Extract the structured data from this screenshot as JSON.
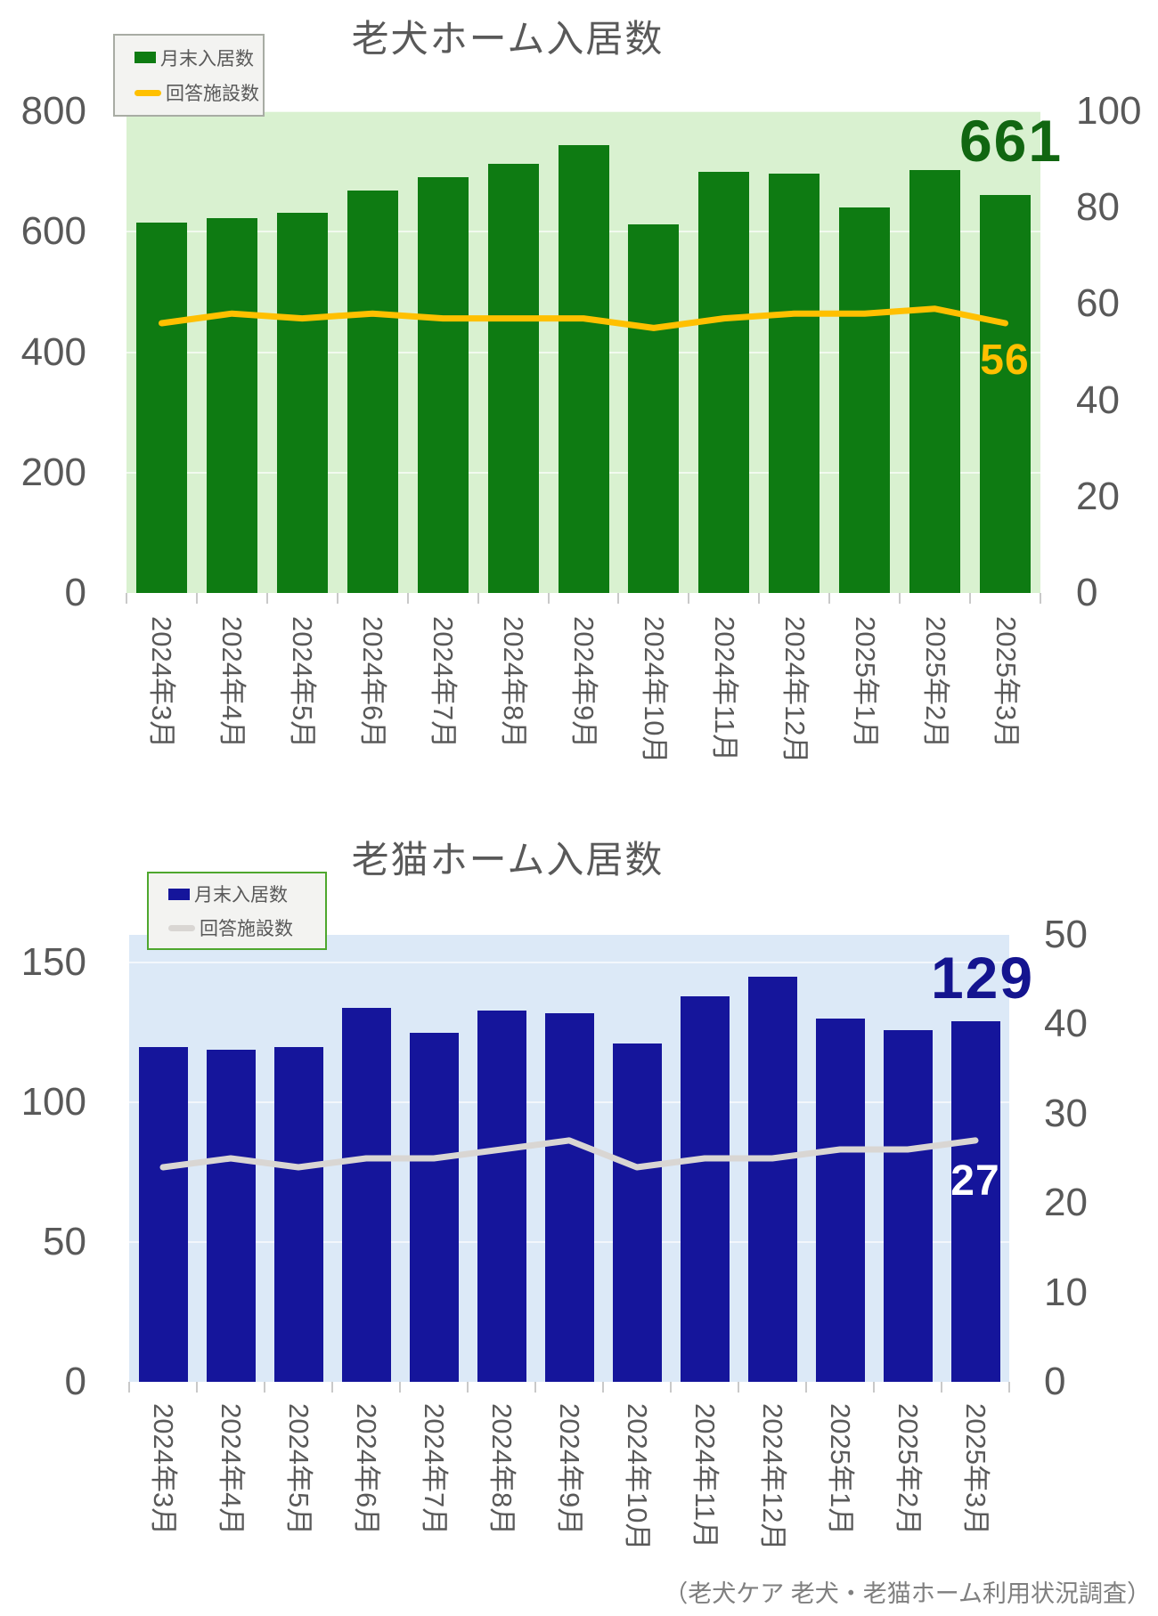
{
  "footer": "（老犬ケア 老犬・老猫ホーム利用状況調査）",
  "chart_data": [
    {
      "type": "bar",
      "title": "老犬ホーム入居数",
      "legend": [
        {
          "label": "月末入居数",
          "series_type": "bar"
        },
        {
          "label": "回答施設数",
          "series_type": "line"
        }
      ],
      "categories": [
        "2024年3月",
        "2024年4月",
        "2024年5月",
        "2024年6月",
        "2024年7月",
        "2024年8月",
        "2024年9月",
        "2024年10月",
        "2024年11月",
        "2024年12月",
        "2025年1月",
        "2025年2月",
        "2025年3月"
      ],
      "series": [
        {
          "name": "月末入居数",
          "type": "bar",
          "axis": "left",
          "values": [
            615,
            622,
            632,
            668,
            690,
            713,
            744,
            612,
            699,
            696,
            641,
            703,
            661
          ]
        },
        {
          "name": "回答施設数",
          "type": "line",
          "axis": "right",
          "values": [
            56,
            58,
            57,
            58,
            57,
            57,
            57,
            55,
            57,
            58,
            58,
            59,
            56
          ]
        }
      ],
      "left_axis_ticks": [
        0,
        200,
        400,
        600,
        800
      ],
      "left_axis_max": 800,
      "right_axis_ticks": [
        0,
        20,
        40,
        60,
        80,
        100
      ],
      "right_axis_max": 100,
      "grid": "horizontal",
      "legend_position": "top-left",
      "end_labels": {
        "bar": "661",
        "line": "56"
      },
      "colors": {
        "bar": "#0E7B12",
        "line": "#FFC000",
        "plot_bg": "#D9F1D0",
        "bar_end_label": "#116611",
        "line_end_label": "#FFC000",
        "legend_border": "#A8ACA4",
        "axis_text": "#595959"
      }
    },
    {
      "type": "bar",
      "title": "老猫ホーム入居数",
      "legend": [
        {
          "label": "月末入居数",
          "series_type": "bar"
        },
        {
          "label": "回答施設数",
          "series_type": "line"
        }
      ],
      "categories": [
        "2024年3月",
        "2024年4月",
        "2024年5月",
        "2024年6月",
        "2024年7月",
        "2024年8月",
        "2024年9月",
        "2024年10月",
        "2024年11月",
        "2024年12月",
        "2025年1月",
        "2025年2月",
        "2025年3月"
      ],
      "series": [
        {
          "name": "月末入居数",
          "type": "bar",
          "axis": "left",
          "values": [
            120,
            119,
            120,
            134,
            125,
            133,
            132,
            121,
            138,
            145,
            130,
            126,
            129
          ]
        },
        {
          "name": "回答施設数",
          "type": "line",
          "axis": "right",
          "values": [
            24,
            25,
            24,
            25,
            25,
            26,
            27,
            24,
            25,
            25,
            26,
            26,
            27
          ]
        }
      ],
      "left_axis_ticks": [
        0,
        50,
        100,
        150
      ],
      "left_axis_max": 160,
      "right_axis_ticks": [
        0,
        10,
        20,
        30,
        40,
        50
      ],
      "right_axis_max": 50,
      "grid": "horizontal",
      "legend_position": "top-left",
      "end_labels": {
        "bar": "129",
        "line": "27"
      },
      "colors": {
        "bar": "#15159B",
        "line": "#D9D6D3",
        "plot_bg": "#DCE9F7",
        "bar_end_label": "#14148F",
        "line_end_label": "#FFFFFF",
        "legend_border": "#4EA72E",
        "axis_text": "#595959"
      }
    }
  ]
}
